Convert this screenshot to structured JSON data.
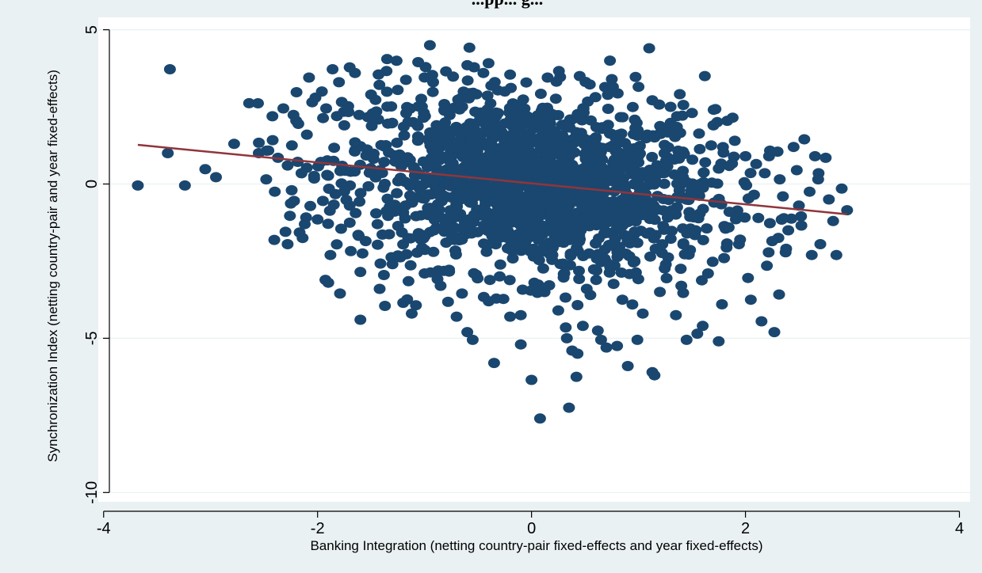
{
  "chart_data": {
    "type": "scatter",
    "title": "...pp... g...",
    "xlabel": "Banking Integration (netting country-pair fixed-effects and year fixed-effects)",
    "ylabel": "Synchronization Index (netting country-pair and year fixed-effects)",
    "xlim": [
      -4.05,
      4.1
    ],
    "ylim": [
      -10.3,
      5.4
    ],
    "xticks": [
      -4,
      -2,
      0,
      2,
      4
    ],
    "xtick_labels": [
      "-4",
      "-2",
      "0",
      "2",
      "4"
    ],
    "yticks": [
      5,
      0,
      -5,
      -10
    ],
    "ytick_labels": [
      "5",
      "0",
      "-5",
      "-10"
    ],
    "grid": "horizontal",
    "legend": "none",
    "colors": {
      "points": "#1a476f",
      "fit_line": "#90353b",
      "outer_background": "#eaf1f3",
      "plot_background": "#ffffff"
    },
    "cloud": {
      "description_count": 1600,
      "center_x": 0.0,
      "center_y": 0.0,
      "sd_x": 0.85,
      "sd_y": 1.45
    },
    "series": [
      {
        "kind": "scatter",
        "points": [
          [
            -3.68,
            -0.05
          ],
          [
            -3.38,
            3.72
          ],
          [
            -3.4,
            1.0
          ],
          [
            -3.24,
            -0.05
          ],
          [
            -3.05,
            0.48
          ],
          [
            -2.95,
            0.22
          ],
          [
            -2.78,
            1.3
          ],
          [
            -2.64,
            2.62
          ],
          [
            -2.42,
            1.42
          ],
          [
            -2.37,
            0.85
          ],
          [
            -2.32,
            2.45
          ],
          [
            -2.3,
            -1.55
          ],
          [
            -2.28,
            -1.95
          ],
          [
            -2.24,
            1.25
          ],
          [
            -2.2,
            2.05
          ],
          [
            -2.14,
            -1.75
          ],
          [
            -2.08,
            3.45
          ],
          [
            -1.96,
            3.0
          ],
          [
            -1.9,
            -3.2
          ],
          [
            -1.86,
            3.72
          ],
          [
            -1.82,
            2.2
          ],
          [
            -1.79,
            -3.55
          ],
          [
            -1.7,
            3.78
          ],
          [
            -1.65,
            3.6
          ],
          [
            -1.6,
            -2.85
          ],
          [
            -1.6,
            -4.4
          ],
          [
            -1.44,
            -1.3
          ],
          [
            -1.43,
            3.55
          ],
          [
            -1.42,
            -3.4
          ],
          [
            -1.37,
            -3.95
          ],
          [
            -1.35,
            4.05
          ],
          [
            -1.2,
            -3.85
          ],
          [
            -1.12,
            -4.2
          ],
          [
            -1.06,
            3.95
          ],
          [
            -1.0,
            -2.9
          ],
          [
            -0.95,
            4.5
          ],
          [
            -0.78,
            -3.82
          ],
          [
            -0.7,
            -4.3
          ],
          [
            -0.6,
            -4.8
          ],
          [
            -0.58,
            4.42
          ],
          [
            -0.55,
            -5.05
          ],
          [
            -0.45,
            3.6
          ],
          [
            -0.4,
            -3.8
          ],
          [
            -0.35,
            -5.8
          ],
          [
            -0.25,
            3.0
          ],
          [
            -0.2,
            -4.3
          ],
          [
            -0.1,
            -4.25
          ],
          [
            0.0,
            -6.35
          ],
          [
            -0.1,
            -5.2
          ],
          [
            0.08,
            -7.6
          ],
          [
            0.15,
            3.45
          ],
          [
            0.25,
            -4.1
          ],
          [
            0.32,
            -4.65
          ],
          [
            0.33,
            -5.0
          ],
          [
            0.35,
            -7.25
          ],
          [
            0.38,
            -5.4
          ],
          [
            0.42,
            -6.25
          ],
          [
            0.43,
            -5.5
          ],
          [
            0.48,
            -4.6
          ],
          [
            0.62,
            -4.75
          ],
          [
            0.65,
            -5.05
          ],
          [
            0.7,
            -5.3
          ],
          [
            0.8,
            -5.25
          ],
          [
            0.9,
            -5.9
          ],
          [
            0.99,
            -5.05
          ],
          [
            1.04,
            -4.2
          ],
          [
            1.1,
            4.4
          ],
          [
            1.13,
            -6.1
          ],
          [
            1.15,
            -6.2
          ],
          [
            1.35,
            -4.25
          ],
          [
            1.45,
            -5.05
          ],
          [
            1.55,
            -4.85
          ],
          [
            1.6,
            -4.6
          ],
          [
            1.62,
            3.5
          ],
          [
            1.75,
            -5.1
          ],
          [
            1.78,
            -3.9
          ],
          [
            1.83,
            2.05
          ],
          [
            1.88,
            2.15
          ],
          [
            2.05,
            -3.75
          ],
          [
            2.1,
            0.65
          ],
          [
            2.15,
            -4.45
          ],
          [
            2.27,
            -4.8
          ],
          [
            2.32,
            0.15
          ],
          [
            2.45,
            1.2
          ],
          [
            2.55,
            1.45
          ],
          [
            2.62,
            -2.3
          ],
          [
            2.65,
            0.9
          ],
          [
            2.7,
            -1.95
          ],
          [
            2.75,
            0.85
          ],
          [
            2.82,
            -1.2
          ],
          [
            2.85,
            -2.3
          ],
          [
            2.9,
            -0.15
          ],
          [
            2.95,
            -0.85
          ],
          [
            2.5,
            -0.7
          ],
          [
            2.4,
            -1.5
          ],
          [
            2.2,
            -2.65
          ],
          [
            2.25,
            -1.85
          ],
          [
            2.6,
            -0.25
          ],
          [
            2.35,
            -0.4
          ],
          [
            2.3,
            1.05
          ],
          [
            -2.48,
            0.15
          ],
          [
            -2.55,
            1.0
          ],
          [
            -2.4,
            -0.25
          ],
          [
            -2.1,
            1.6
          ],
          [
            -2.15,
            0.35
          ],
          [
            -2.0,
            -1.15
          ],
          [
            -1.95,
            -0.55
          ],
          [
            -2.05,
            2.65
          ],
          [
            -1.75,
            1.9
          ],
          [
            -1.7,
            -0.7
          ],
          [
            -1.55,
            -1.85
          ],
          [
            -1.5,
            2.9
          ],
          [
            -1.3,
            -2.6
          ],
          [
            -1.25,
            3.05
          ],
          [
            -1.15,
            -3.15
          ],
          [
            -0.92,
            3.3
          ],
          [
            -0.85,
            -3.3
          ],
          [
            -0.8,
            3.65
          ],
          [
            -0.65,
            -3.55
          ],
          [
            -0.6,
            3.85
          ],
          [
            0.45,
            3.5
          ],
          [
            0.55,
            -3.6
          ],
          [
            0.75,
            3.4
          ],
          [
            0.85,
            -3.75
          ],
          [
            1.0,
            3.15
          ],
          [
            1.2,
            -3.5
          ],
          [
            1.3,
            2.5
          ],
          [
            1.4,
            -3.3
          ],
          [
            1.5,
            2.3
          ],
          [
            1.65,
            -2.9
          ],
          [
            1.7,
            1.9
          ],
          [
            1.8,
            -2.4
          ],
          [
            1.9,
            1.4
          ],
          [
            1.95,
            -1.8
          ],
          [
            2.0,
            0.9
          ],
          [
            2.12,
            -1.1
          ],
          [
            2.18,
            0.35
          ],
          [
            1.85,
            -0.9
          ],
          [
            1.75,
            0.5
          ],
          [
            -1.85,
            0.75
          ],
          [
            -1.78,
            -1.45
          ],
          [
            -1.65,
            1.35
          ],
          [
            -1.58,
            -2.25
          ],
          [
            -1.45,
            2.35
          ],
          [
            -1.38,
            -2.95
          ],
          [
            -2.28,
            0.6
          ],
          [
            -2.22,
            -0.55
          ],
          [
            -2.18,
            1.95
          ],
          [
            -2.12,
            -1.3
          ],
          [
            -2.02,
            2.8
          ],
          [
            -1.92,
            2.45
          ],
          [
            -1.88,
            -2.3
          ],
          [
            -1.8,
            3.3
          ],
          [
            2.08,
            -0.35
          ],
          [
            2.22,
            0.9
          ],
          [
            2.38,
            -2.1
          ],
          [
            2.48,
            0.45
          ],
          [
            2.52,
            -1.05
          ],
          [
            2.68,
            0.15
          ],
          [
            2.78,
            -0.5
          ]
        ]
      },
      {
        "kind": "line",
        "name": "",
        "points": [
          [
            -3.68,
            1.27
          ],
          [
            2.95,
            -0.98
          ]
        ]
      }
    ]
  }
}
